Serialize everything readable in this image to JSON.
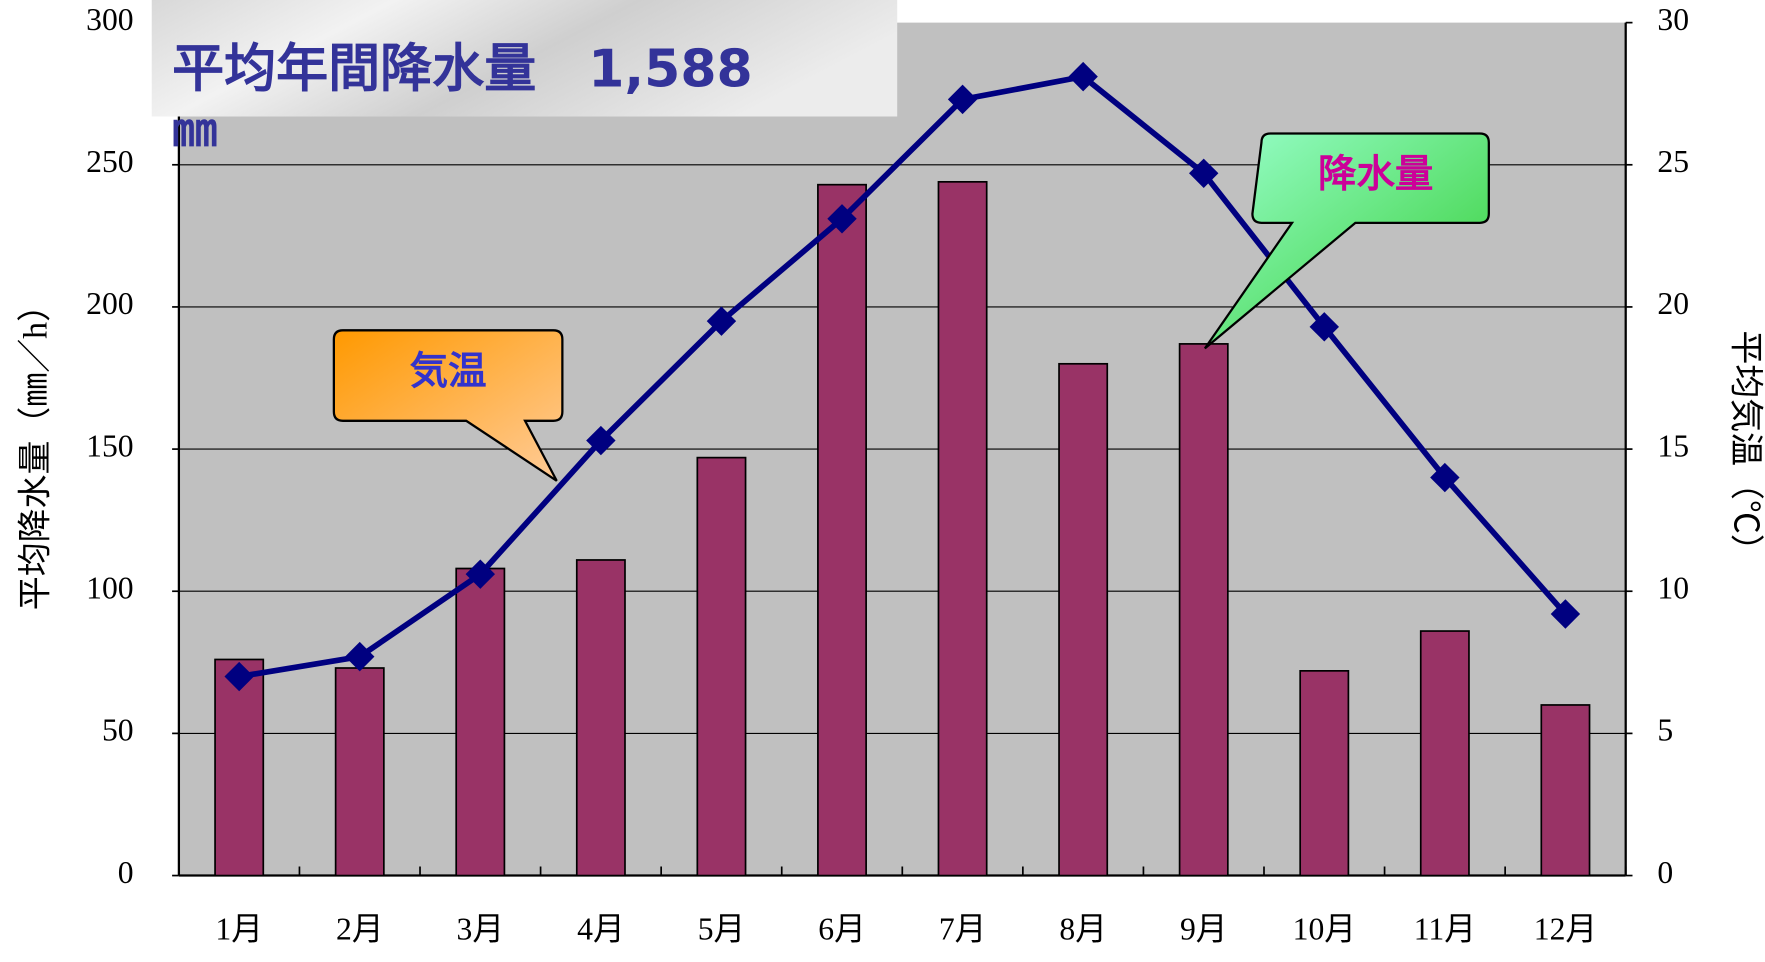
{
  "chart_data": {
    "type": "bar_line",
    "title": "平均年間降水量　1,588",
    "title_unit": "㎜",
    "categories": [
      "1月",
      "2月",
      "3月",
      "4月",
      "5月",
      "6月",
      "7月",
      "8月",
      "9月",
      "10月",
      "11月",
      "12月"
    ],
    "series": [
      {
        "name": "降水量",
        "color": "#993366",
        "type": "bar",
        "values": [
          76,
          73,
          108,
          111,
          147,
          243,
          244,
          180,
          187,
          72,
          86,
          60
        ]
      },
      {
        "name": "気温",
        "color": "#000080",
        "type": "line",
        "axis": "y2",
        "values": [
          7.0,
          7.7,
          10.6,
          15.3,
          19.5,
          23.1,
          27.3,
          28.1,
          24.7,
          19.3,
          14.0,
          9.2
        ]
      }
    ],
    "ylabel": "平均降水量（㎜／h）",
    "y2label": "平均気温（℃）",
    "ylim": [
      0,
      300
    ],
    "yticks": [
      0,
      50,
      100,
      150,
      200,
      250,
      300
    ],
    "y2lim": [
      0,
      30
    ],
    "y2ticks": [
      0,
      5,
      10,
      15,
      20,
      25,
      30
    ],
    "grid": true
  }
}
